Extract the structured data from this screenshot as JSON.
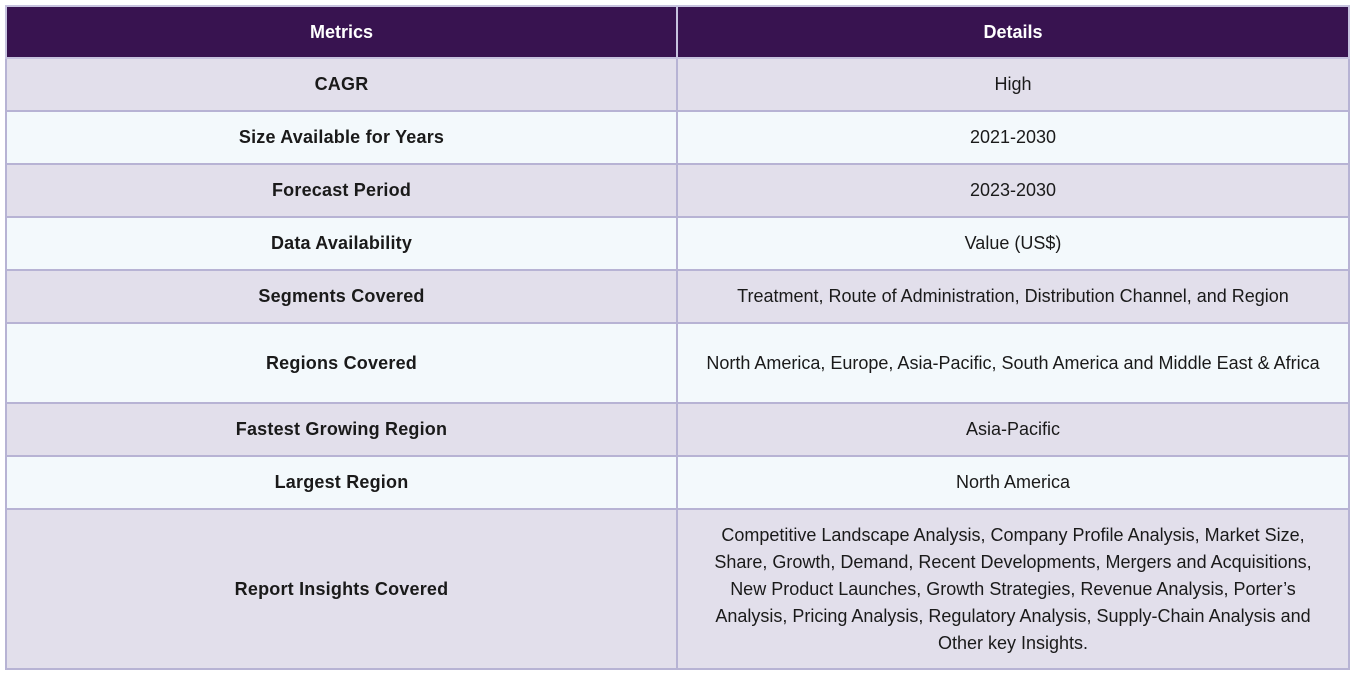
{
  "table": {
    "headers": [
      "Metrics",
      "Details"
    ],
    "rows": [
      {
        "metric": "CAGR",
        "detail": "High"
      },
      {
        "metric": "Size Available for Years",
        "detail": "2021-2030"
      },
      {
        "metric": "Forecast Period",
        "detail": "2023-2030"
      },
      {
        "metric": "Data Availability",
        "detail": "Value (US$)"
      },
      {
        "metric": "Segments Covered",
        "detail": "Treatment, Route of Administration, Distribution Channel, and Region"
      },
      {
        "metric": "Regions Covered",
        "detail": "North America, Europe, Asia-Pacific, South America and Middle East & Africa"
      },
      {
        "metric": "Fastest Growing Region",
        "detail": "Asia-Pacific"
      },
      {
        "metric": "Largest Region",
        "detail": "North America"
      },
      {
        "metric": "Report Insights Covered",
        "detail": "Competitive Landscape Analysis, Company Profile Analysis, Market Size, Share, Growth, Demand, Recent Developments, Mergers and Acquisitions, New Product Launches, Growth Strategies, Revenue Analysis, Porter’s Analysis, Pricing Analysis, Regulatory Analysis, Supply-Chain Analysis and Other key Insights."
      }
    ]
  },
  "colors": {
    "header_bg": "#381350",
    "row_odd_bg": "#e2dfeb",
    "row_even_bg": "#f3f9fc",
    "border": "#b7b3d4"
  }
}
